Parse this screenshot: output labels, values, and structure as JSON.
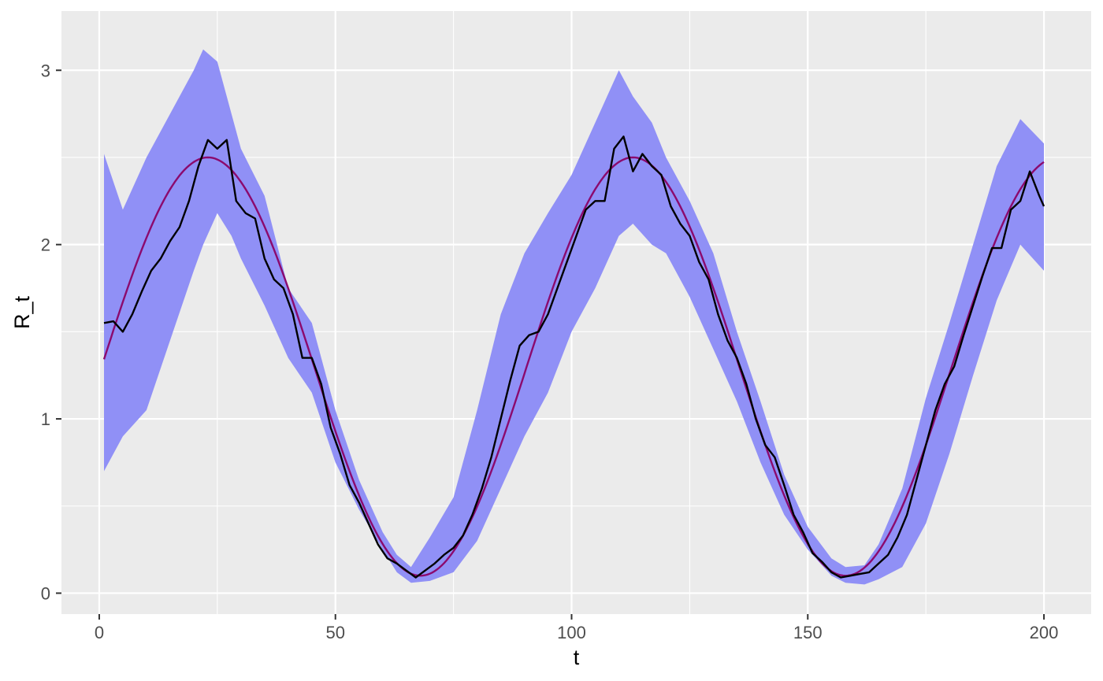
{
  "chart_data": {
    "type": "line",
    "title": "",
    "xlabel": "t",
    "ylabel": "R_t",
    "xlim": [
      -8,
      210
    ],
    "ylim": [
      -0.12,
      3.34
    ],
    "x_ticks": [
      0,
      50,
      100,
      150,
      200
    ],
    "x_tick_labels": [
      "0",
      "50",
      "100",
      "150",
      "200"
    ],
    "y_ticks": [
      0,
      1,
      2,
      3
    ],
    "y_tick_labels": [
      "0",
      "1",
      "2",
      "3"
    ],
    "grid": true,
    "legend": "none",
    "colors": {
      "panel_background": "#ebebeb",
      "grid_major": "#ffffff",
      "band": "#9090f6",
      "estimate": "#000000",
      "truth": "#8b0a6e"
    },
    "series": [
      {
        "kind": "band",
        "x": [
          1,
          5,
          10,
          15,
          20,
          22,
          25,
          28,
          30,
          35,
          40,
          45,
          50,
          55,
          60,
          63,
          66,
          70,
          75,
          80,
          85,
          90,
          95,
          100,
          105,
          110,
          113,
          117,
          120,
          125,
          130,
          135,
          140,
          145,
          150,
          155,
          158,
          162,
          165,
          170,
          175,
          180,
          185,
          190,
          195,
          200
        ],
        "lower": [
          0.7,
          0.9,
          1.05,
          1.45,
          1.85,
          2.0,
          2.18,
          2.05,
          1.92,
          1.65,
          1.35,
          1.15,
          0.75,
          0.48,
          0.25,
          0.12,
          0.06,
          0.07,
          0.12,
          0.3,
          0.6,
          0.9,
          1.15,
          1.5,
          1.75,
          2.05,
          2.12,
          2.0,
          1.95,
          1.7,
          1.4,
          1.1,
          0.75,
          0.45,
          0.25,
          0.1,
          0.06,
          0.05,
          0.08,
          0.15,
          0.4,
          0.8,
          1.25,
          1.68,
          2.0,
          1.85
        ],
        "upper": [
          2.52,
          2.2,
          2.5,
          2.75,
          3.0,
          3.12,
          3.05,
          2.75,
          2.55,
          2.28,
          1.75,
          1.55,
          1.05,
          0.65,
          0.35,
          0.22,
          0.15,
          0.32,
          0.55,
          1.05,
          1.6,
          1.95,
          2.18,
          2.4,
          2.7,
          3.0,
          2.85,
          2.7,
          2.5,
          2.25,
          1.95,
          1.5,
          1.1,
          0.68,
          0.38,
          0.2,
          0.15,
          0.16,
          0.28,
          0.6,
          1.12,
          1.55,
          2.0,
          2.45,
          2.72,
          2.58
        ]
      },
      {
        "kind": "line",
        "role": "estimate",
        "x": [
          1,
          3,
          5,
          7,
          9,
          11,
          13,
          15,
          17,
          19,
          21,
          23,
          25,
          27,
          29,
          31,
          33,
          35,
          37,
          39,
          41,
          43,
          45,
          47,
          49,
          51,
          53,
          55,
          57,
          59,
          61,
          63,
          65,
          67,
          69,
          71,
          73,
          75,
          77,
          79,
          81,
          83,
          85,
          87,
          89,
          91,
          93,
          95,
          97,
          99,
          101,
          103,
          105,
          107,
          109,
          111,
          113,
          115,
          117,
          119,
          121,
          123,
          125,
          127,
          129,
          131,
          133,
          135,
          137,
          139,
          141,
          143,
          145,
          147,
          149,
          151,
          153,
          155,
          157,
          159,
          161,
          163,
          165,
          167,
          169,
          171,
          173,
          175,
          177,
          179,
          181,
          183,
          185,
          187,
          189,
          191,
          193,
          195,
          197,
          199,
          200
        ],
        "values": [
          1.55,
          1.56,
          1.5,
          1.6,
          1.73,
          1.85,
          1.92,
          2.02,
          2.1,
          2.25,
          2.45,
          2.6,
          2.55,
          2.6,
          2.25,
          2.18,
          2.15,
          1.92,
          1.8,
          1.75,
          1.6,
          1.35,
          1.35,
          1.2,
          0.95,
          0.8,
          0.62,
          0.52,
          0.4,
          0.28,
          0.2,
          0.17,
          0.13,
          0.09,
          0.13,
          0.17,
          0.22,
          0.26,
          0.33,
          0.45,
          0.6,
          0.78,
          1.0,
          1.22,
          1.42,
          1.48,
          1.5,
          1.6,
          1.75,
          1.9,
          2.05,
          2.2,
          2.25,
          2.25,
          2.55,
          2.62,
          2.42,
          2.52,
          2.45,
          2.4,
          2.22,
          2.12,
          2.05,
          1.9,
          1.8,
          1.6,
          1.45,
          1.35,
          1.2,
          1.0,
          0.85,
          0.78,
          0.62,
          0.45,
          0.35,
          0.23,
          0.18,
          0.12,
          0.09,
          0.1,
          0.11,
          0.12,
          0.17,
          0.22,
          0.32,
          0.45,
          0.65,
          0.85,
          1.05,
          1.2,
          1.3,
          1.48,
          1.65,
          1.82,
          1.98,
          1.98,
          2.2,
          2.25,
          2.42,
          2.28,
          2.22
        ]
      },
      {
        "kind": "line",
        "role": "truth",
        "function": "1.3 + 1.2*sin(2*pi*(t - 0.5)/90)",
        "x_range": [
          1,
          200
        ]
      }
    ]
  }
}
